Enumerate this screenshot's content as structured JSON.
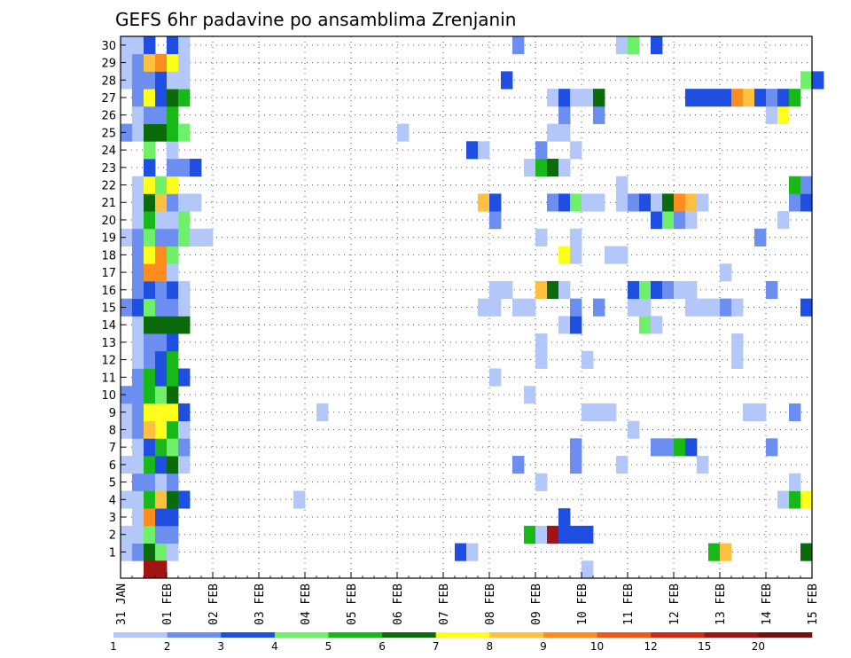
{
  "chart_data": {
    "type": "heatmap",
    "title": "GEFS 6hr padavine po ansamblima Zrenjanin",
    "xlabel": "",
    "ylabel": "",
    "members": [
      1,
      2,
      3,
      4,
      5,
      6,
      7,
      8,
      9,
      10,
      11,
      12,
      13,
      14,
      15,
      16,
      17,
      18,
      19,
      20,
      21,
      22,
      23,
      24,
      25,
      26,
      27,
      28,
      29,
      30
    ],
    "x_tick_labels": [
      "31 JAN",
      "01 FEB",
      "02 FEB",
      "03 FEB",
      "04 FEB",
      "05 FEB",
      "06 FEB",
      "07 FEB",
      "08 FEB",
      "09 FEB",
      "10 FEB",
      "11 FEB",
      "12 FEB",
      "13 FEB",
      "14 FEB",
      "15 FEB"
    ],
    "time_step_hours": 6,
    "steps_per_day": 4,
    "x_range_days": [
      0,
      15
    ],
    "y_range_members": [
      0,
      30
    ],
    "grid": "dotted",
    "legend": {
      "placement": "bottom",
      "levels": [
        "1",
        "2",
        "3",
        "4",
        "5",
        "6",
        "7",
        "8",
        "9",
        "10",
        "12",
        "15",
        "20"
      ],
      "colors": [
        "#b3c8f8",
        "#6b8ef0",
        "#1f4fe0",
        "#6ef06a",
        "#18b818",
        "#0b6b0b",
        "#ffff1e",
        "#ffc040",
        "#ff8c1e",
        "#f05a14",
        "#d22814",
        "#a01414",
        "#780f0f"
      ]
    },
    "cells": [
      [
        1,
        0,
        1
      ],
      [
        1,
        1,
        2
      ],
      [
        1,
        2,
        6
      ],
      [
        1,
        3,
        4
      ],
      [
        1,
        4,
        1
      ],
      [
        1,
        29,
        3
      ],
      [
        1,
        30,
        1
      ],
      [
        1,
        51,
        5
      ],
      [
        1,
        52,
        8
      ],
      [
        1,
        59,
        6
      ],
      [
        2,
        0,
        1
      ],
      [
        2,
        1,
        1
      ],
      [
        2,
        2,
        4
      ],
      [
        2,
        3,
        2
      ],
      [
        2,
        4,
        2
      ],
      [
        2,
        35,
        5
      ],
      [
        2,
        36,
        1
      ],
      [
        2,
        37,
        12
      ],
      [
        2,
        38,
        3
      ],
      [
        2,
        39,
        3
      ],
      [
        2,
        40,
        3
      ],
      [
        3,
        1,
        1
      ],
      [
        3,
        2,
        9
      ],
      [
        3,
        3,
        3
      ],
      [
        3,
        4,
        3
      ],
      [
        3,
        38,
        3
      ],
      [
        4,
        0,
        1
      ],
      [
        4,
        1,
        1
      ],
      [
        4,
        2,
        5
      ],
      [
        4,
        3,
        8
      ],
      [
        4,
        4,
        6
      ],
      [
        4,
        5,
        3
      ],
      [
        4,
        15,
        1
      ],
      [
        4,
        57,
        1
      ],
      [
        4,
        58,
        5
      ],
      [
        4,
        59,
        7
      ],
      [
        5,
        1,
        2
      ],
      [
        5,
        2,
        2
      ],
      [
        5,
        3,
        1
      ],
      [
        5,
        4,
        2
      ],
      [
        5,
        36,
        1
      ],
      [
        5,
        58,
        1
      ],
      [
        6,
        0,
        1
      ],
      [
        6,
        1,
        1
      ],
      [
        6,
        2,
        5
      ],
      [
        6,
        3,
        3
      ],
      [
        6,
        4,
        6
      ],
      [
        6,
        5,
        1
      ],
      [
        6,
        34,
        2
      ],
      [
        6,
        39,
        2
      ],
      [
        6,
        43,
        1
      ],
      [
        6,
        50,
        1
      ],
      [
        7,
        1,
        1
      ],
      [
        7,
        2,
        3
      ],
      [
        7,
        3,
        5
      ],
      [
        7,
        4,
        4
      ],
      [
        7,
        5,
        2
      ],
      [
        7,
        39,
        2
      ],
      [
        7,
        46,
        2
      ],
      [
        7,
        47,
        2
      ],
      [
        7,
        48,
        5
      ],
      [
        7,
        49,
        3
      ],
      [
        7,
        56,
        2
      ],
      [
        8,
        0,
        1
      ],
      [
        8,
        1,
        2
      ],
      [
        8,
        2,
        8
      ],
      [
        8,
        3,
        7
      ],
      [
        8,
        4,
        5
      ],
      [
        8,
        5,
        1
      ],
      [
        8,
        44,
        1
      ],
      [
        9,
        0,
        1
      ],
      [
        9,
        1,
        2
      ],
      [
        9,
        2,
        7
      ],
      [
        9,
        3,
        7
      ],
      [
        9,
        4,
        7
      ],
      [
        9,
        5,
        3
      ],
      [
        9,
        17,
        1
      ],
      [
        9,
        40,
        1
      ],
      [
        9,
        41,
        1
      ],
      [
        9,
        42,
        1
      ],
      [
        9,
        54,
        1
      ],
      [
        9,
        55,
        1
      ],
      [
        9,
        58,
        2
      ],
      [
        10,
        0,
        2
      ],
      [
        10,
        1,
        2
      ],
      [
        10,
        2,
        5
      ],
      [
        10,
        3,
        4
      ],
      [
        10,
        4,
        6
      ],
      [
        10,
        35,
        1
      ],
      [
        11,
        1,
        2
      ],
      [
        11,
        2,
        5
      ],
      [
        11,
        3,
        3
      ],
      [
        11,
        4,
        5
      ],
      [
        11,
        5,
        3
      ],
      [
        11,
        32,
        1
      ],
      [
        12,
        1,
        1
      ],
      [
        12,
        2,
        2
      ],
      [
        12,
        3,
        3
      ],
      [
        12,
        4,
        5
      ],
      [
        12,
        36,
        1
      ],
      [
        12,
        40,
        1
      ],
      [
        12,
        53,
        1
      ],
      [
        13,
        1,
        1
      ],
      [
        13,
        2,
        2
      ],
      [
        13,
        3,
        2
      ],
      [
        13,
        4,
        3
      ],
      [
        13,
        36,
        1
      ],
      [
        13,
        53,
        1
      ],
      [
        14,
        1,
        1
      ],
      [
        14,
        2,
        6
      ],
      [
        14,
        3,
        6
      ],
      [
        14,
        4,
        6
      ],
      [
        14,
        5,
        6
      ],
      [
        14,
        38,
        1
      ],
      [
        14,
        39,
        3
      ],
      [
        14,
        45,
        4
      ],
      [
        14,
        46,
        1
      ],
      [
        15,
        0,
        2
      ],
      [
        15,
        1,
        3
      ],
      [
        15,
        2,
        4
      ],
      [
        15,
        3,
        2
      ],
      [
        15,
        4,
        2
      ],
      [
        15,
        5,
        1
      ],
      [
        15,
        31,
        1
      ],
      [
        15,
        32,
        1
      ],
      [
        15,
        34,
        1
      ],
      [
        15,
        35,
        1
      ],
      [
        15,
        39,
        2
      ],
      [
        15,
        41,
        2
      ],
      [
        15,
        44,
        1
      ],
      [
        15,
        45,
        1
      ],
      [
        15,
        49,
        1
      ],
      [
        15,
        50,
        1
      ],
      [
        15,
        51,
        1
      ],
      [
        15,
        52,
        2
      ],
      [
        15,
        53,
        1
      ],
      [
        15,
        59,
        3
      ],
      [
        16,
        1,
        2
      ],
      [
        16,
        2,
        3
      ],
      [
        16,
        3,
        2
      ],
      [
        16,
        4,
        3
      ],
      [
        16,
        5,
        1
      ],
      [
        16,
        32,
        1
      ],
      [
        16,
        33,
        1
      ],
      [
        16,
        36,
        8
      ],
      [
        16,
        37,
        6
      ],
      [
        16,
        38,
        1
      ],
      [
        16,
        44,
        3
      ],
      [
        16,
        45,
        4
      ],
      [
        16,
        46,
        3
      ],
      [
        16,
        47,
        2
      ],
      [
        16,
        48,
        1
      ],
      [
        16,
        49,
        1
      ],
      [
        16,
        56,
        2
      ],
      [
        17,
        1,
        2
      ],
      [
        17,
        2,
        9
      ],
      [
        17,
        3,
        9
      ],
      [
        17,
        4,
        1
      ],
      [
        17,
        52,
        1
      ],
      [
        18,
        1,
        2
      ],
      [
        18,
        2,
        7
      ],
      [
        18,
        3,
        9
      ],
      [
        18,
        4,
        4
      ],
      [
        18,
        38,
        7
      ],
      [
        18,
        39,
        1
      ],
      [
        18,
        42,
        1
      ],
      [
        18,
        43,
        1
      ],
      [
        19,
        0,
        1
      ],
      [
        19,
        1,
        2
      ],
      [
        19,
        2,
        4
      ],
      [
        19,
        3,
        2
      ],
      [
        19,
        4,
        2
      ],
      [
        19,
        5,
        4
      ],
      [
        19,
        6,
        1
      ],
      [
        19,
        7,
        1
      ],
      [
        19,
        36,
        1
      ],
      [
        19,
        39,
        1
      ],
      [
        19,
        55,
        2
      ],
      [
        20,
        1,
        1
      ],
      [
        20,
        2,
        5
      ],
      [
        20,
        3,
        1
      ],
      [
        20,
        4,
        1
      ],
      [
        20,
        5,
        4
      ],
      [
        20,
        32,
        2
      ],
      [
        20,
        46,
        3
      ],
      [
        20,
        47,
        4
      ],
      [
        20,
        48,
        2
      ],
      [
        20,
        49,
        1
      ],
      [
        20,
        57,
        1
      ],
      [
        21,
        1,
        1
      ],
      [
        21,
        2,
        6
      ],
      [
        21,
        3,
        8
      ],
      [
        21,
        4,
        2
      ],
      [
        21,
        5,
        1
      ],
      [
        21,
        6,
        1
      ],
      [
        21,
        31,
        8
      ],
      [
        21,
        32,
        3
      ],
      [
        21,
        37,
        2
      ],
      [
        21,
        38,
        3
      ],
      [
        21,
        39,
        4
      ],
      [
        21,
        40,
        1
      ],
      [
        21,
        41,
        1
      ],
      [
        21,
        43,
        1
      ],
      [
        21,
        44,
        2
      ],
      [
        21,
        45,
        3
      ],
      [
        21,
        46,
        1
      ],
      [
        21,
        47,
        6
      ],
      [
        21,
        48,
        9
      ],
      [
        21,
        49,
        8
      ],
      [
        21,
        50,
        1
      ],
      [
        21,
        58,
        2
      ],
      [
        21,
        59,
        3
      ],
      [
        22,
        1,
        1
      ],
      [
        22,
        2,
        7
      ],
      [
        22,
        3,
        4
      ],
      [
        22,
        4,
        7
      ],
      [
        22,
        43,
        1
      ],
      [
        22,
        58,
        5
      ],
      [
        22,
        59,
        2
      ],
      [
        23,
        2,
        3
      ],
      [
        23,
        4,
        2
      ],
      [
        23,
        5,
        2
      ],
      [
        23,
        6,
        3
      ],
      [
        23,
        35,
        1
      ],
      [
        23,
        36,
        5
      ],
      [
        23,
        37,
        6
      ],
      [
        23,
        38,
        1
      ],
      [
        24,
        2,
        4
      ],
      [
        24,
        4,
        1
      ],
      [
        24,
        30,
        3
      ],
      [
        24,
        31,
        1
      ],
      [
        24,
        36,
        2
      ],
      [
        24,
        39,
        1
      ],
      [
        25,
        0,
        2
      ],
      [
        25,
        1,
        1
      ],
      [
        25,
        2,
        6
      ],
      [
        25,
        3,
        6
      ],
      [
        25,
        4,
        5
      ],
      [
        25,
        5,
        4
      ],
      [
        25,
        24,
        1
      ],
      [
        25,
        37,
        1
      ],
      [
        25,
        38,
        1
      ],
      [
        26,
        1,
        1
      ],
      [
        26,
        2,
        2
      ],
      [
        26,
        3,
        2
      ],
      [
        26,
        4,
        5
      ],
      [
        26,
        38,
        2
      ],
      [
        26,
        41,
        2
      ],
      [
        26,
        56,
        1
      ],
      [
        26,
        57,
        7
      ],
      [
        27,
        1,
        2
      ],
      [
        27,
        2,
        7
      ],
      [
        27,
        3,
        3
      ],
      [
        27,
        4,
        6
      ],
      [
        27,
        5,
        5
      ],
      [
        27,
        37,
        1
      ],
      [
        27,
        38,
        3
      ],
      [
        27,
        39,
        1
      ],
      [
        27,
        40,
        1
      ],
      [
        27,
        41,
        6
      ],
      [
        27,
        49,
        3
      ],
      [
        27,
        50,
        3
      ],
      [
        27,
        51,
        3
      ],
      [
        27,
        52,
        3
      ],
      [
        27,
        53,
        9
      ],
      [
        27,
        54,
        8
      ],
      [
        27,
        55,
        3
      ],
      [
        27,
        56,
        2
      ],
      [
        27,
        57,
        3
      ],
      [
        27,
        58,
        5
      ],
      [
        28,
        0,
        1
      ],
      [
        28,
        1,
        2
      ],
      [
        28,
        2,
        2
      ],
      [
        28,
        3,
        3
      ],
      [
        28,
        4,
        1
      ],
      [
        28,
        5,
        1
      ],
      [
        28,
        33,
        3
      ],
      [
        28,
        59,
        4
      ],
      [
        28,
        60,
        3
      ],
      [
        29,
        0,
        1
      ],
      [
        29,
        1,
        2
      ],
      [
        29,
        2,
        8
      ],
      [
        29,
        3,
        9
      ],
      [
        29,
        4,
        7
      ],
      [
        29,
        5,
        1
      ],
      [
        30,
        0,
        1
      ],
      [
        30,
        1,
        1
      ],
      [
        30,
        2,
        3
      ],
      [
        30,
        4,
        3
      ],
      [
        30,
        5,
        1
      ],
      [
        30,
        34,
        2
      ],
      [
        30,
        43,
        1
      ],
      [
        30,
        44,
        4
      ],
      [
        30,
        46,
        3
      ],
      [
        0,
        2,
        12
      ],
      [
        0,
        3,
        12
      ],
      [
        0,
        40,
        1
      ]
    ]
  }
}
